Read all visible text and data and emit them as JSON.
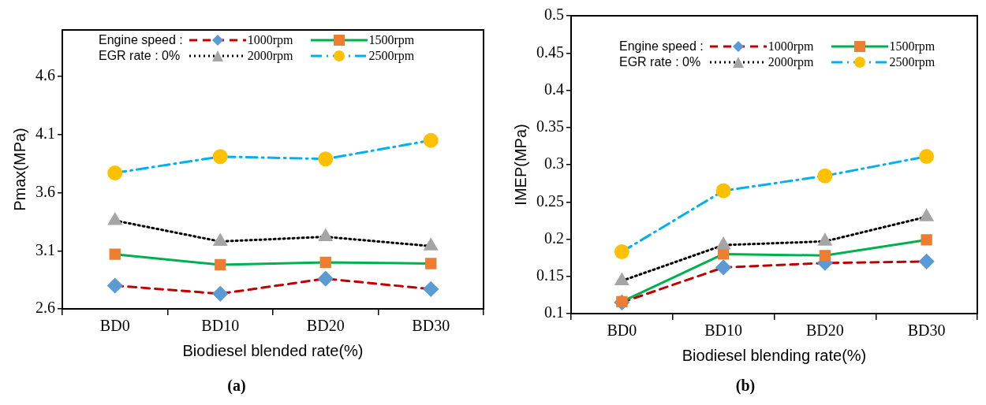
{
  "chart_data": [
    {
      "type": "line",
      "categories": [
        "BD0",
        "BD10",
        "BD20",
        "BD30"
      ],
      "xlabel": "Biodiesel blended rate(%)",
      "ylabel": "Pmax(MPa)",
      "ylim": [
        2.6,
        5.0
      ],
      "yticks": [
        2.6,
        3.1,
        3.6,
        4.1,
        4.6
      ],
      "grid": false,
      "legend": "top",
      "legend_title": "Engine speed :",
      "annotations": [
        "EGR rate : 0%",
        "(a)"
      ],
      "series": [
        {
          "name": "1000rpm",
          "color": "#c00000",
          "marker": "diamond",
          "colors": [
            "#5b9bd5",
            "#5b9bd5",
            "#5b9bd5",
            "#5b9bd5"
          ],
          "line_style": "dashed",
          "values": [
            2.8,
            2.73,
            2.86,
            2.77
          ]
        },
        {
          "name": "1500rpm",
          "color": "#00b050",
          "marker": "square",
          "colors": [
            "#ed7d31",
            "#ed7d31",
            "#ed7d31",
            "#ed7d31"
          ],
          "line_style": "solid",
          "values": [
            3.07,
            2.98,
            3.0,
            2.99
          ]
        },
        {
          "name": "2000rpm",
          "color": "#000000",
          "marker": "triangle",
          "colors": [
            "#a5a5a5",
            "#a5a5a5",
            "#a5a5a5",
            "#a5a5a5"
          ],
          "line_style": "dotted",
          "values": [
            3.36,
            3.18,
            3.22,
            3.14
          ]
        },
        {
          "name": "2500rpm",
          "color": "#00b0f0",
          "marker": "circle",
          "colors": [
            "#ffc000",
            "#ffc000",
            "#ffc000",
            "#ffc000"
          ],
          "line_style": "dashdot",
          "values": [
            3.77,
            3.91,
            3.89,
            4.05
          ]
        }
      ]
    },
    {
      "type": "line",
      "categories": [
        "BD0",
        "BD10",
        "BD20",
        "BD30"
      ],
      "xlabel": "Biodiesel blending rate(%)",
      "ylabel": "IMEP(MPa)",
      "ylim": [
        0.1,
        0.5
      ],
      "yticks": [
        0.1,
        0.15,
        0.2,
        0.25,
        0.3,
        0.35,
        0.4,
        0.45,
        0.5
      ],
      "grid": false,
      "legend": "top",
      "legend_title": "Engine speed :",
      "annotations": [
        "EGR rate : 0%",
        "(b)"
      ],
      "series": [
        {
          "name": "1000rpm",
          "color": "#c00000",
          "marker": "diamond",
          "colors": [
            "#5b9bd5",
            "#5b9bd5",
            "#5b9bd5",
            "#5b9bd5"
          ],
          "line_style": "dashed",
          "values": [
            0.115,
            0.162,
            0.168,
            0.17
          ]
        },
        {
          "name": "1500rpm",
          "color": "#00b050",
          "marker": "square",
          "colors": [
            "#ed7d31",
            "#ed7d31",
            "#ed7d31",
            "#ed7d31"
          ],
          "line_style": "solid",
          "values": [
            0.116,
            0.18,
            0.178,
            0.199
          ]
        },
        {
          "name": "2000rpm",
          "color": "#000000",
          "marker": "triangle",
          "colors": [
            "#a5a5a5",
            "#a5a5a5",
            "#a5a5a5",
            "#a5a5a5"
          ],
          "line_style": "dotted",
          "values": [
            0.144,
            0.192,
            0.197,
            0.23
          ]
        },
        {
          "name": "2500rpm",
          "color": "#00b0f0",
          "marker": "circle",
          "colors": [
            "#ffc000",
            "#ffc000",
            "#ffc000",
            "#ffc000"
          ],
          "line_style": "dashdot",
          "values": [
            0.183,
            0.265,
            0.285,
            0.311
          ]
        }
      ]
    }
  ]
}
